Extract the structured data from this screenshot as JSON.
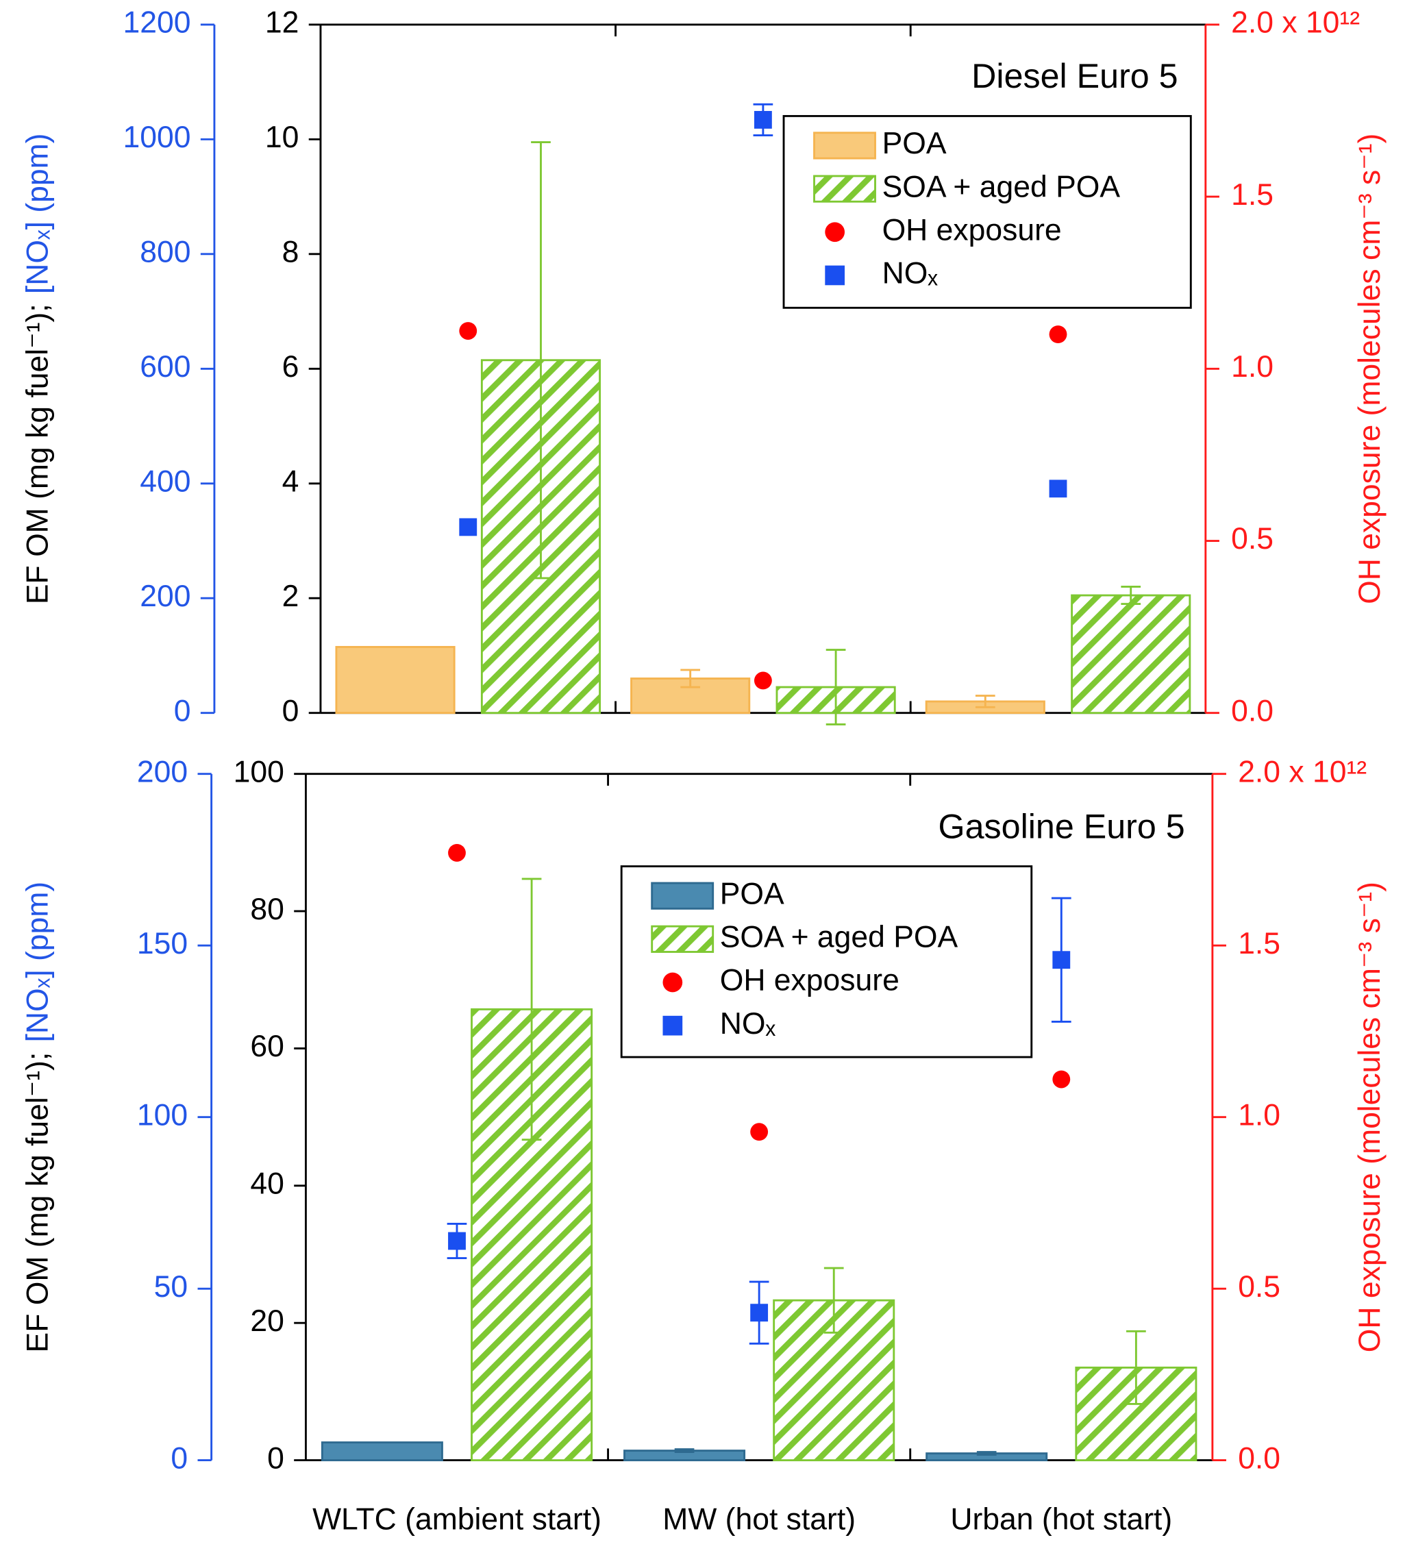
{
  "chart_data": [
    {
      "type": "bar",
      "title": "Diesel Euro 5",
      "ylabel": "EF OM (mg kg fuel⁻¹);",
      "y3label": "[NOₓ] (ppm)",
      "y2label": "OH exposure (molecules cm⁻³ s⁻¹)",
      "categories": [
        null,
        null,
        null
      ],
      "ylim": [
        0,
        12
      ],
      "yticks": [
        0,
        2,
        4,
        6,
        8,
        10,
        12
      ],
      "y2lim": [
        0,
        2
      ],
      "y2ticks": [
        {
          "value": 0,
          "label": "0.0"
        },
        {
          "value": 0.5,
          "label": "0.5"
        },
        {
          "value": 1,
          "label": "1.0"
        },
        {
          "value": 1.5,
          "label": "1.5"
        },
        {
          "value": 2,
          "label": "2.0 x 10¹²"
        }
      ],
      "y2color": "#ff1a1a",
      "y3lim": [
        0,
        1200
      ],
      "y3ticks": [
        0,
        200,
        400,
        600,
        800,
        1000,
        1200
      ],
      "y3color": "#2255e6",
      "series": [
        {
          "name": "POA",
          "color": "#f9c97a",
          "values": [
            1.15,
            0.6,
            0.2
          ],
          "errors": [
            null,
            0.15,
            0.1
          ]
        },
        {
          "name": "SOA + aged POA",
          "color": "#7ec832",
          "pattern": "hatch",
          "values": [
            6.15,
            0.45,
            2.05
          ],
          "errors": [
            3.8,
            0.65,
            0.15
          ]
        },
        {
          "name": "OH exposure",
          "type": "scatter",
          "marker": "circle",
          "axis": "y2",
          "color": "#ff0000",
          "values": [
            1.11,
            0.094,
            1.1
          ]
        },
        {
          "name": "NOₓ",
          "type": "scatter",
          "marker": "square",
          "axis": "y3",
          "color": "#1a4ff0",
          "values": [
            324,
            1034,
            391
          ],
          "errors": [
            null,
            27,
            null
          ]
        }
      ]
    },
    {
      "type": "bar",
      "title": "Gasoline Euro 5",
      "ylabel": "EF OM (mg kg fuel⁻¹);",
      "y3label": "[NOₓ] (ppm)",
      "y2label": "OH exposure (molecules cm⁻³ s⁻¹)",
      "categories": [
        "WLTC (ambient start)",
        "MW (hot start)",
        "Urban (hot start)"
      ],
      "ylim": [
        0,
        100
      ],
      "yticks": [
        0,
        20,
        40,
        60,
        80,
        100
      ],
      "y2lim": [
        0,
        2
      ],
      "y2ticks": [
        {
          "value": 0,
          "label": "0.0"
        },
        {
          "value": 0.5,
          "label": "0.5"
        },
        {
          "value": 1,
          "label": "1.0"
        },
        {
          "value": 1.5,
          "label": "1.5"
        },
        {
          "value": 2,
          "label": "2.0 x 10¹²"
        }
      ],
      "y2color": "#ff1a1a",
      "y3lim": [
        0,
        200
      ],
      "y3ticks": [
        0,
        50,
        100,
        150,
        200
      ],
      "y3color": "#2255e6",
      "series": [
        {
          "name": "POA",
          "color": "#4a8ab0",
          "values": [
            2.6,
            1.4,
            1.0
          ],
          "errors": [
            null,
            0.2,
            0.2
          ]
        },
        {
          "name": "SOA + aged POA",
          "color": "#7ec832",
          "pattern": "hatch",
          "values": [
            65.7,
            23.3,
            13.5
          ],
          "errors": [
            19,
            4.7,
            5.3
          ]
        },
        {
          "name": "OH exposure",
          "type": "scatter",
          "marker": "circle",
          "axis": "y2",
          "color": "#ff0000",
          "values": [
            1.77,
            0.957,
            1.11
          ]
        },
        {
          "name": "NOₓ",
          "type": "scatter",
          "marker": "square",
          "axis": "y3",
          "color": "#1a4ff0",
          "values": [
            63.9,
            43,
            145.8
          ],
          "errors": [
            5,
            9,
            18
          ]
        }
      ]
    }
  ]
}
